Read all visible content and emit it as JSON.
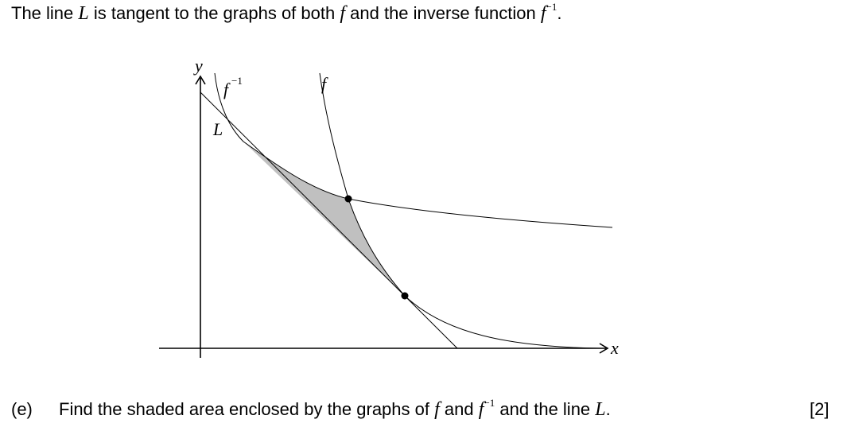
{
  "intro": {
    "part1": "The line",
    "line_name": "L",
    "part2": "is tangent to the graphs of both",
    "function_name": "f",
    "part3": "and the inverse function",
    "inverse_base": "f",
    "inverse_exponent": "−1",
    "end": "."
  },
  "figure": {
    "axis_x_label": "x",
    "axis_y_label": "y",
    "curve_f_label": "f",
    "curve_finv_label_base": "f",
    "curve_finv_label_exp": "−1",
    "line_label": "L",
    "shaded_region_color": "#c0c0c0"
  },
  "question": {
    "label": "(e)",
    "part1": "Find the shaded area enclosed by the graphs of",
    "function_name": "f",
    "part2": "and",
    "inverse_base": "f",
    "inverse_exponent": "−1",
    "part3": "and the line",
    "line_name": "L",
    "end": ".",
    "marks": "[2]"
  }
}
